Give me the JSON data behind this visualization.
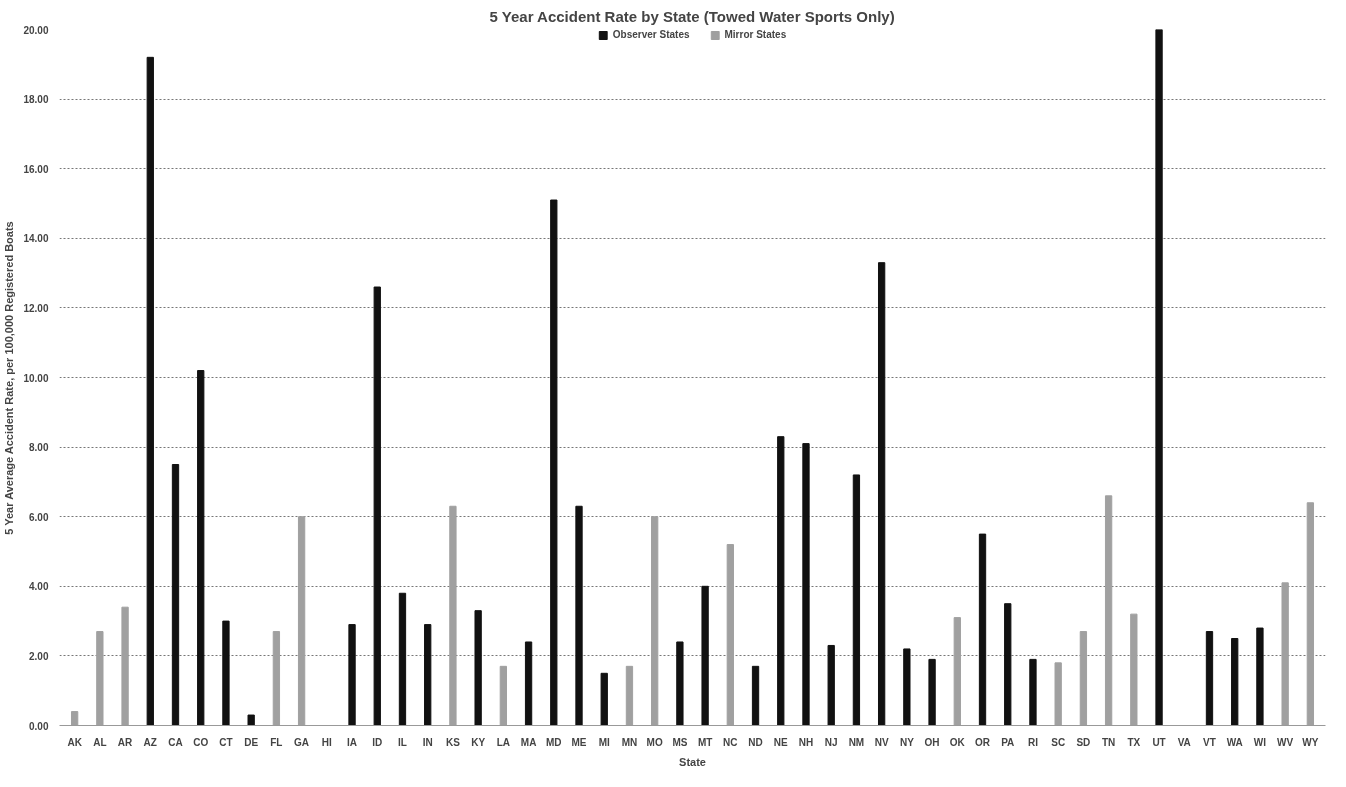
{
  "chart_data": {
    "type": "bar",
    "title": "5 Year Accident Rate by State (Towed Water Sports Only)",
    "xlabel": "State",
    "ylabel": "5 Year Average Accident Rate, per 100,000 Registered Boats",
    "categories": [
      "AK",
      "AL",
      "AR",
      "AZ",
      "CA",
      "CO",
      "CT",
      "DE",
      "FL",
      "GA",
      "HI",
      "IA",
      "ID",
      "IL",
      "IN",
      "KS",
      "KY",
      "LA",
      "MA",
      "MD",
      "ME",
      "MI",
      "MN",
      "MO",
      "MS",
      "MT",
      "NC",
      "ND",
      "NE",
      "NH",
      "NJ",
      "NM",
      "NV",
      "NY",
      "OH",
      "OK",
      "OR",
      "PA",
      "RI",
      "SC",
      "SD",
      "TN",
      "TX",
      "UT",
      "VA",
      "VT",
      "WA",
      "WI",
      "WV",
      "WY"
    ],
    "series": [
      {
        "name": "Observer States",
        "color": "#111111",
        "values": [
          null,
          null,
          null,
          19.2,
          7.5,
          10.2,
          3.0,
          0.3,
          null,
          null,
          null,
          2.9,
          12.6,
          3.8,
          2.9,
          null,
          3.3,
          null,
          2.4,
          15.1,
          6.3,
          1.5,
          null,
          null,
          2.4,
          4.0,
          null,
          1.7,
          8.3,
          8.1,
          2.3,
          7.2,
          13.3,
          2.2,
          1.9,
          null,
          5.5,
          3.5,
          1.9,
          null,
          null,
          null,
          null,
          20.0,
          null,
          2.7,
          2.5,
          2.8,
          null,
          null
        ]
      },
      {
        "name": "Mirror States",
        "color": "#a0a0a0",
        "values": [
          0.4,
          2.7,
          3.4,
          null,
          null,
          null,
          null,
          null,
          2.7,
          6.0,
          null,
          null,
          null,
          null,
          null,
          6.3,
          null,
          1.7,
          null,
          null,
          null,
          null,
          1.7,
          6.0,
          null,
          null,
          5.2,
          null,
          null,
          null,
          null,
          null,
          null,
          null,
          null,
          3.1,
          null,
          null,
          null,
          1.8,
          2.7,
          6.6,
          3.2,
          null,
          null,
          null,
          null,
          null,
          4.1,
          6.4
        ]
      }
    ],
    "ylim": [
      0,
      20
    ],
    "yticks": [
      {
        "value": 0,
        "label": "0.00"
      },
      {
        "value": 2,
        "label": "2.00"
      },
      {
        "value": 4,
        "label": "4.00"
      },
      {
        "value": 6,
        "label": "6.00"
      },
      {
        "value": 8,
        "label": "8.00"
      },
      {
        "value": 10,
        "label": "10.00"
      },
      {
        "value": 12,
        "label": "12.00"
      },
      {
        "value": 14,
        "label": "14.00"
      },
      {
        "value": 16,
        "label": "16.00"
      },
      {
        "value": 18,
        "label": "18.00"
      },
      {
        "value": 20,
        "label": "20.00"
      }
    ],
    "grid": "y",
    "legend": "top"
  }
}
